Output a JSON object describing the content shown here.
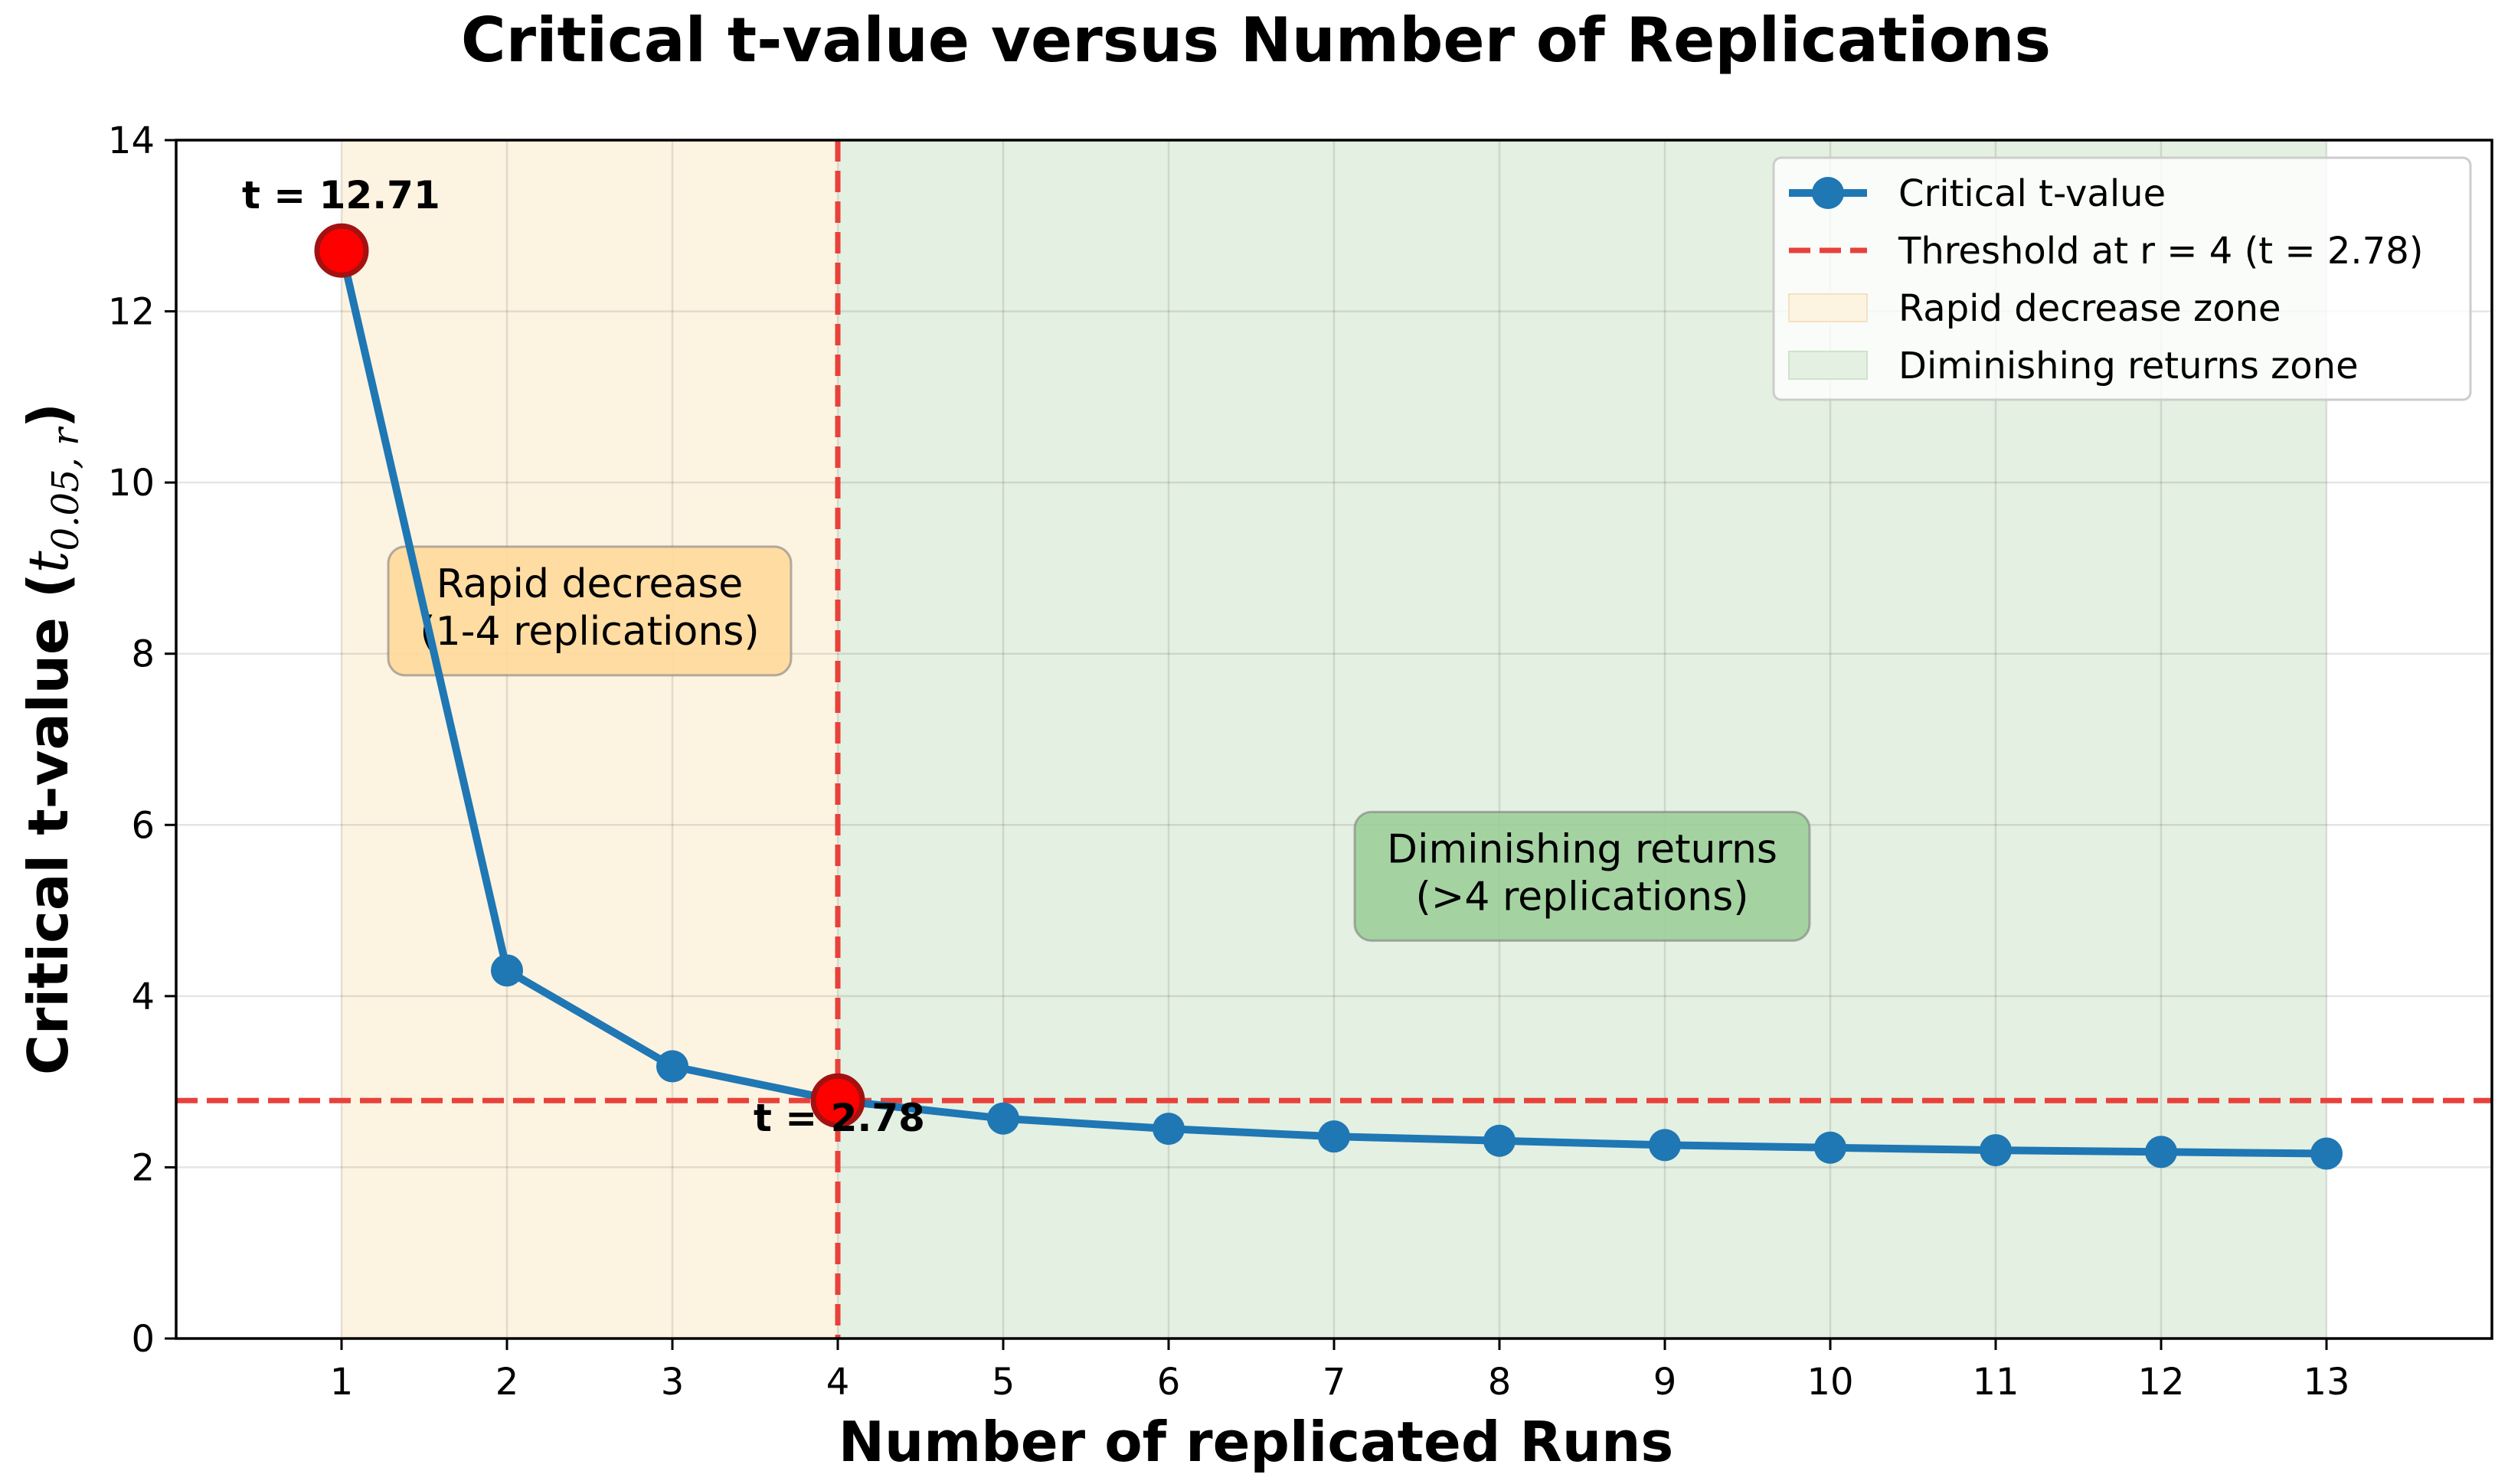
{
  "chart_data": {
    "type": "line",
    "title": "Critical t-value versus Number of Replications",
    "xlabel": "Number of replicated Runs",
    "ylabel_main": "Critical t-value (",
    "ylabel_math": "t",
    "ylabel_sub": "0.05, r",
    "ylabel_close": ")",
    "xlim": [
      0,
      14
    ],
    "ylim": [
      0,
      14
    ],
    "x_ticks": [
      "1",
      "2",
      "3",
      "4",
      "5",
      "6",
      "7",
      "8",
      "9",
      "10",
      "11",
      "12",
      "13"
    ],
    "y_ticks": [
      "0",
      "2",
      "4",
      "6",
      "8",
      "10",
      "12",
      "14"
    ],
    "grid": true,
    "series": [
      {
        "name": "Critical t-value",
        "color": "#1f77b4",
        "x": [
          1,
          2,
          3,
          4,
          5,
          6,
          7,
          8,
          9,
          10,
          11,
          12,
          13
        ],
        "y": [
          12.71,
          4.3,
          3.18,
          2.78,
          2.57,
          2.45,
          2.36,
          2.31,
          2.26,
          2.23,
          2.2,
          2.18,
          2.16
        ]
      }
    ],
    "threshold": {
      "name": "Threshold at r = 4 (t = 2.78)",
      "x": 4,
      "y": 2.78,
      "color": "#e8413a"
    },
    "zones": [
      {
        "name": "Rapid decrease zone",
        "x_range": [
          1,
          4
        ],
        "color": "#fdf3e1"
      },
      {
        "name": "Diminishing returns zone",
        "x_range": [
          4,
          13
        ],
        "color": "#e4f0e1"
      }
    ],
    "highlight_points": [
      {
        "x": 1,
        "y": 12.71,
        "label": "t = 12.71"
      },
      {
        "x": 4,
        "y": 2.78,
        "label": "t = 2.78"
      }
    ],
    "annotations": [
      {
        "lines": [
          "Rapid decrease",
          "(1-4 replications)"
        ],
        "x": 2.5,
        "y": 8.5,
        "color": "#fed99b"
      },
      {
        "lines": [
          "Diminishing returns",
          "(>4 replications)"
        ],
        "x": 8.5,
        "y": 5.4,
        "color": "#9ccf9a"
      }
    ],
    "legend": {
      "placement": "top-right",
      "entries": [
        "Critical t-value",
        "Threshold at r = 4 (t = 2.78)",
        "Rapid decrease zone",
        "Diminishing returns zone"
      ]
    }
  }
}
